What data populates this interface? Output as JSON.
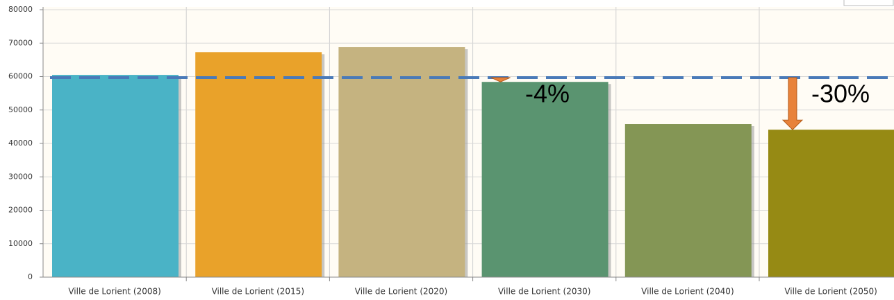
{
  "chart_data": {
    "type": "bar",
    "categories": [
      "Ville de Lorient (2008)",
      "Ville de Lorient (2015)",
      "Ville de Lorient (2020)",
      "Ville de Lorient (2030)",
      "Ville de Lorient (2040)",
      "Ville de Lorient (2050)"
    ],
    "values": [
      60500,
      67300,
      68800,
      58400,
      45800,
      44100
    ],
    "colors": [
      "#4ab3c6",
      "#e9a22a",
      "#c5b380",
      "#5a9470",
      "#849655",
      "#968a14"
    ],
    "ylim": [
      0,
      80000
    ],
    "yticks": [
      0,
      10000,
      20000,
      30000,
      40000,
      50000,
      60000,
      70000,
      80000
    ],
    "grid": true,
    "reference_line": {
      "value": 59700,
      "color": "#4a7ab8"
    },
    "annotations": [
      "-4%",
      "-30%"
    ],
    "arrow_color": "#e8823a"
  }
}
